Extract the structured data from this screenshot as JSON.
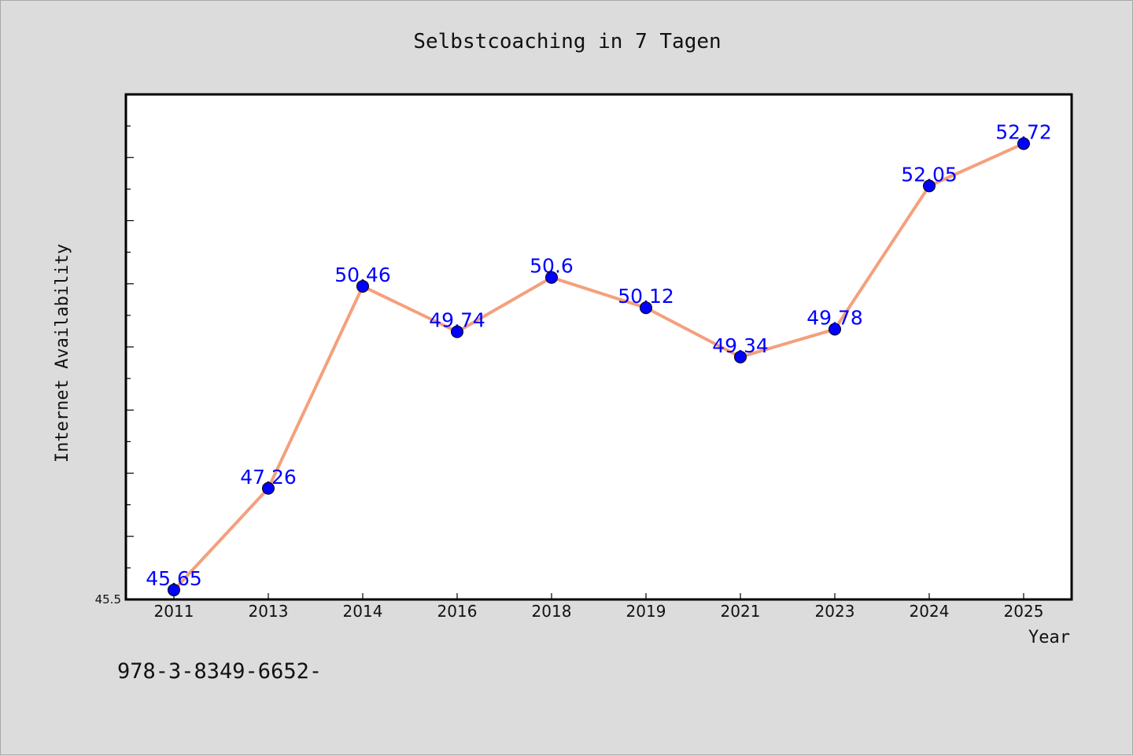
{
  "chart_data": {
    "type": "line",
    "title": "Selbstcoaching in 7 Tagen",
    "xlabel": "Year",
    "ylabel": "Internet Availability",
    "categories": [
      "2011",
      "2013",
      "2014",
      "2016",
      "2018",
      "2019",
      "2021",
      "2023",
      "2024",
      "2025"
    ],
    "series": [
      {
        "values": [
          45.65,
          47.26,
          50.46,
          49.74,
          50.6,
          50.12,
          49.34,
          49.78,
          52.05,
          52.72
        ],
        "labels": [
          "45.65",
          "47.26",
          "50.46",
          "49.74",
          "50.6",
          "50.12",
          "49.34",
          "49.78",
          "52.05",
          "52.72"
        ]
      }
    ],
    "ylim": [
      45.5,
      53.5
    ],
    "y_min_tick_label": "45.5",
    "grid": false,
    "legend": "none",
    "colors": {
      "line": "#f4a07d",
      "marker": "#0000ff",
      "label": "#0000ff",
      "plot_background": "#ffffff",
      "page_background": "#dcdcdc"
    }
  },
  "footer_text": "978-3-8349-6652-"
}
